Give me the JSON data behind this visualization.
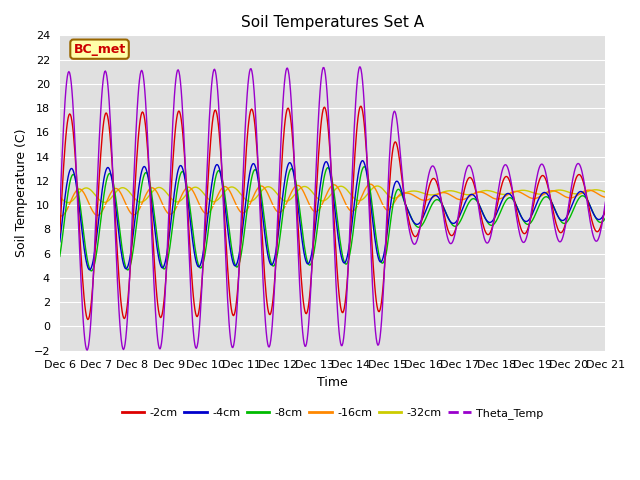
{
  "title": "Soil Temperatures Set A",
  "xlabel": "Time",
  "ylabel": "Soil Temperature (C)",
  "ylim": [
    -2,
    24
  ],
  "yticks": [
    -2,
    0,
    2,
    4,
    6,
    8,
    10,
    12,
    14,
    16,
    18,
    20,
    22,
    24
  ],
  "background_color": "#e0e0e0",
  "fig_background": "#ffffff",
  "annotation_text": "BC_met",
  "annotation_bg": "#ffffaa",
  "annotation_border": "#996600",
  "annotation_text_color": "#cc0000",
  "colors": {
    "-2cm": "#dd0000",
    "-4cm": "#0000cc",
    "-8cm": "#00bb00",
    "-16cm": "#ff8800",
    "-32cm": "#cccc00",
    "Theta_Temp": "#9900cc"
  },
  "legend_labels": [
    "-2cm",
    "-4cm",
    "-8cm",
    "-16cm",
    "-32cm",
    "Theta_Temp"
  ],
  "xtick_labels": [
    "Dec 6",
    "Dec 7",
    "Dec 8",
    "Dec 9",
    "Dec 10",
    "Dec 11",
    "Dec 12",
    "Dec 13",
    "Dec 14",
    "Dec 15",
    "Dec 16",
    "Dec 17",
    "Dec 18",
    "Dec 19",
    "Dec 20",
    "Dec 21"
  ],
  "num_points": 720,
  "days": 15
}
